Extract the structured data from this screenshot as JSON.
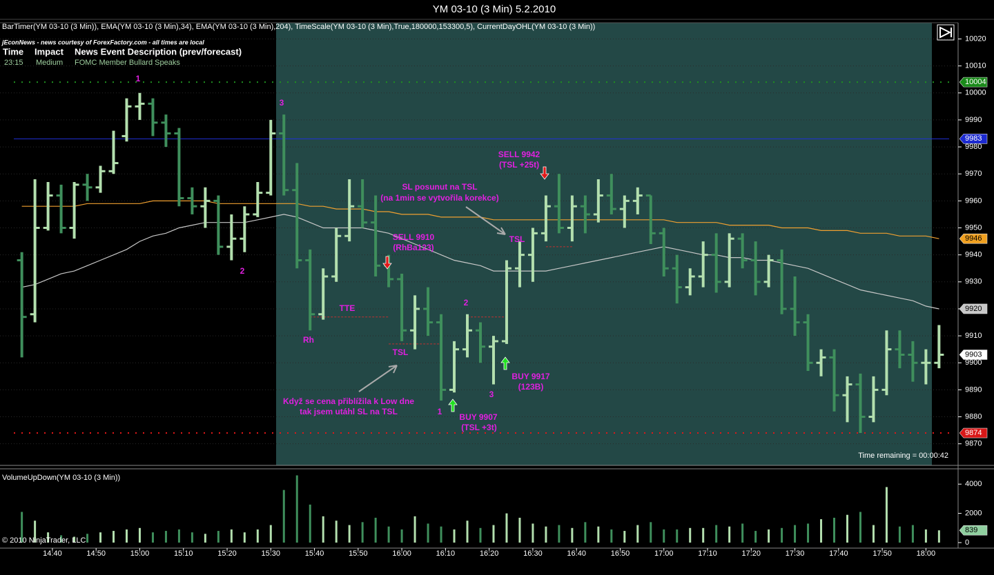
{
  "window_title": "YM 03-10 (3 Min)  5.2.2010",
  "chart_data": {
    "type": "ohlc",
    "indicator_line": "BarTimer(YM 03-10 (3 Min)), EMA(YM 03-10 (3 Min),34), EMA(YM 03-10 (3 Min),204), TimeScale(YM 03-10 (3 Min),True,180000,153300,5), CurrentDayOHL(YM 03-10 (3 Min))",
    "news": {
      "source": "jEconNews - news courtesy of ForexFactory.com - all times are local",
      "headers": [
        "Time",
        "Impact",
        "News Event Description (prev/forecast)"
      ],
      "row": [
        "23:15",
        "Medium",
        "FOMC Member Bullard Speaks"
      ]
    },
    "x": [
      "14:33",
      "14:36",
      "14:39",
      "14:42",
      "14:45",
      "14:48",
      "14:51",
      "14:54",
      "14:57",
      "15:00",
      "15:03",
      "15:06",
      "15:09",
      "15:12",
      "15:15",
      "15:18",
      "15:21",
      "15:24",
      "15:27",
      "15:30",
      "15:33",
      "15:36",
      "15:39",
      "15:42",
      "15:45",
      "15:48",
      "15:51",
      "15:54",
      "15:57",
      "16:00",
      "16:03",
      "16:06",
      "16:09",
      "16:12",
      "16:15",
      "16:18",
      "16:21",
      "16:24",
      "16:27",
      "16:30",
      "16:33",
      "16:36",
      "16:39",
      "16:42",
      "16:45",
      "16:48",
      "16:51",
      "16:54",
      "16:57",
      "17:00",
      "17:03",
      "17:06",
      "17:09",
      "17:12",
      "17:15",
      "17:18",
      "17:21",
      "17:24",
      "17:27",
      "17:30",
      "17:33",
      "17:36",
      "17:39",
      "17:42",
      "17:45",
      "17:48",
      "17:51",
      "17:54",
      "17:57",
      "18:00",
      "18:03"
    ],
    "open": [
      9938,
      9918,
      9950,
      9962,
      9950,
      9966,
      9965,
      9971,
      9984,
      9995,
      9996,
      9989,
      9985,
      9961,
      9958,
      9960,
      9943,
      9946,
      9955,
      9963,
      9985,
      9964,
      9938,
      9918,
      9932,
      9947,
      9958,
      9952,
      9936,
      9931,
      9912,
      9920,
      9915,
      9890,
      9905,
      9912,
      9906,
      9908,
      9935,
      9940,
      9948,
      9958,
      9950,
      9958,
      9955,
      9962,
      9957,
      9960,
      9962,
      9948,
      9935,
      9928,
      9932,
      9940,
      9930,
      9946,
      9938,
      9930,
      9938,
      9920,
      9915,
      9900,
      9902,
      9888,
      9892,
      9880,
      9890,
      9905,
      9903,
      9900,
      9900
    ],
    "high": [
      9941,
      9968,
      9967,
      9966,
      9967,
      9970,
      9973,
      9986,
      9998,
      10000,
      9998,
      9992,
      9987,
      9965,
      9965,
      9962,
      9955,
      9958,
      9967,
      9990,
      9992,
      9974,
      9942,
      9935,
      9950,
      9968,
      9968,
      9962,
      9940,
      9933,
      9925,
      9928,
      9918,
      9908,
      9918,
      9915,
      9910,
      9938,
      9945,
      9950,
      9962,
      9970,
      9962,
      9962,
      9968,
      9970,
      9962,
      9965,
      9962,
      9950,
      9940,
      9935,
      9945,
      9948,
      9948,
      9948,
      9945,
      9940,
      9942,
      9932,
      9918,
      9905,
      9905,
      9895,
      9896,
      9895,
      9912,
      9912,
      9908,
      9905,
      9914
    ],
    "low": [
      9902,
      9915,
      9949,
      9948,
      9946,
      9960,
      9963,
      9970,
      9982,
      9990,
      9984,
      9980,
      9958,
      9955,
      9950,
      9940,
      9938,
      9941,
      9954,
      9962,
      9962,
      9935,
      9912,
      9916,
      9930,
      9945,
      9950,
      9932,
      9928,
      9908,
      9905,
      9910,
      9886,
      9889,
      9902,
      9900,
      9892,
      9907,
      9928,
      9930,
      9945,
      9948,
      9945,
      9948,
      9952,
      9955,
      9950,
      9955,
      9944,
      9932,
      9922,
      9925,
      9928,
      9926,
      9928,
      9935,
      9925,
      9928,
      9918,
      9910,
      9897,
      9895,
      9882,
      9878,
      9874,
      9878,
      9888,
      9898,
      9893,
      9892,
      9898
    ],
    "close": [
      9917,
      9950,
      9962,
      9950,
      9966,
      9965,
      9971,
      9974,
      9995,
      9996,
      9989,
      9985,
      9961,
      9958,
      9960,
      9943,
      9946,
      9955,
      9963,
      9985,
      9964,
      9938,
      9918,
      9932,
      9947,
      9958,
      9952,
      9936,
      9931,
      9912,
      9920,
      9915,
      9890,
      9905,
      9912,
      9906,
      9908,
      9935,
      9940,
      9948,
      9958,
      9950,
      9958,
      9955,
      9962,
      9957,
      9960,
      9962,
      9948,
      9935,
      9928,
      9932,
      9940,
      9930,
      9946,
      9938,
      9930,
      9938,
      9920,
      9915,
      9900,
      9902,
      9888,
      9892,
      9880,
      9890,
      9905,
      9903,
      9900,
      9900,
      9903
    ],
    "up_color": "#b3dfae",
    "down_color": "#3f8f5c",
    "indicators": [
      {
        "color": "#c8c8c8",
        "values": [
          9928,
          9929,
          9931,
          9933,
          9934,
          9936,
          9938,
          9940,
          9942,
          9945,
          9947,
          9948,
          9950,
          9951,
          9952,
          9952,
          9952,
          9952,
          9953,
          9954,
          9955,
          9954,
          9952,
          9950,
          9950,
          9950,
          9950,
          9949,
          9948,
          9946,
          9944,
          9942,
          9940,
          9938,
          9937,
          9936,
          9934,
          9934,
          9934,
          9934,
          9934,
          9935,
          9936,
          9937,
          9938,
          9939,
          9940,
          9941,
          9942,
          9943,
          9942,
          9941,
          9940,
          9940,
          9939,
          9939,
          9938,
          9938,
          9937,
          9936,
          9935,
          9933,
          9931,
          9929,
          9927,
          9926,
          9925,
          9924,
          9923,
          9921,
          9920
        ]
      },
      {
        "color": "#f0a030",
        "values": [
          9958,
          9958,
          9958,
          9958,
          9958,
          9959,
          9959,
          9959,
          9959,
          9959,
          9960,
          9960,
          9960,
          9960,
          9960,
          9959,
          9959,
          9959,
          9959,
          9959,
          9959,
          9959,
          9958,
          9958,
          9957,
          9957,
          9957,
          9956,
          9956,
          9955,
          9955,
          9955,
          9954,
          9954,
          9954,
          9954,
          9953,
          9953,
          9953,
          9953,
          9953,
          9953,
          9953,
          9953,
          9953,
          9953,
          9953,
          9953,
          9953,
          9953,
          9952,
          9952,
          9952,
          9952,
          9951,
          9951,
          9951,
          9951,
          9950,
          9950,
          9950,
          9949,
          9949,
          9949,
          9948,
          9948,
          9948,
          9947,
          9947,
          9947,
          9946
        ]
      }
    ],
    "lines": [
      {
        "value": 10004,
        "color": "#1f8f1f",
        "style": "dotted"
      },
      {
        "value": 9983,
        "color": "#2030d8",
        "style": "solid"
      },
      {
        "value": 9874,
        "color": "#e01818",
        "style": "dotted"
      }
    ],
    "trade_lines": {
      "color": "#c03030",
      "items": [
        {
          "value": 9917,
          "from": "15:39",
          "to": "15:57"
        },
        {
          "value": 9907,
          "from": "15:57",
          "to": "16:09"
        },
        {
          "value": 9917,
          "from": "16:15",
          "to": "16:24"
        },
        {
          "value": 9943,
          "from": "16:33",
          "to": "16:39"
        }
      ]
    },
    "price_markers": [
      {
        "value": 10004,
        "color": "#1a8a1a"
      },
      {
        "value": 9983,
        "color": "#1c2ad0"
      },
      {
        "value": 9946,
        "color": "#f0a020"
      },
      {
        "value": 9920,
        "color": "#c8c8c8"
      },
      {
        "value": 9903,
        "color": "#ffffff"
      },
      {
        "value": 9874,
        "color": "#d81818"
      }
    ],
    "xlim": [
      "14:28",
      "18:08"
    ],
    "xticks": [
      "14:40",
      "14:50",
      "15:00",
      "15:10",
      "15:20",
      "15:30",
      "15:40",
      "15:50",
      "16:00",
      "16:10",
      "16:20",
      "16:30",
      "16:40",
      "16:50",
      "17:00",
      "17:10",
      "17:20",
      "17:30",
      "17:40",
      "17:50",
      "18:00"
    ],
    "ylim": [
      9862,
      10026
    ],
    "yticks": [
      9870,
      9880,
      9890,
      9900,
      9910,
      9920,
      9930,
      9940,
      9950,
      9960,
      9970,
      9980,
      9990,
      10000,
      10010,
      10020
    ],
    "grid": true,
    "time_remaining": "Time remaining = 00:00:42",
    "annotations": [
      "1",
      "3",
      "2",
      "Rh",
      "TTE",
      "TSL",
      "SELL 9910",
      "(RhBa123)",
      "SL posunut na TSL",
      "(na 1min se vytvořila korekce)",
      "SELL 9942",
      "(TSL +25t)",
      "TSL",
      "2",
      "1",
      "3",
      "BUY 9907",
      "(TSL +3t)",
      "BUY 9917",
      "(123B)",
      "Když se cena přiblížila k Low dne",
      "tak jsem utáhl SL na TSL"
    ],
    "volume": {
      "title": "VolumeUpDown(YM 03-10 (3 Min))",
      "values": [
        2100,
        1500,
        700,
        500,
        400,
        600,
        700,
        800,
        900,
        1000,
        700,
        800,
        900,
        700,
        600,
        800,
        900,
        700,
        900,
        1200,
        3600,
        4600,
        2600,
        1800,
        1500,
        1200,
        1400,
        1700,
        1100,
        900,
        1800,
        1300,
        1100,
        900,
        1500,
        1000,
        1200,
        2000,
        1700,
        1300,
        1100,
        1200,
        1000,
        1400,
        1100,
        900,
        800,
        1200,
        1400,
        900,
        900,
        1000,
        1000,
        1200,
        1100,
        1300,
        800,
        900,
        1000,
        1200,
        1300,
        1600,
        1700,
        1900,
        2100,
        1200,
        3800,
        1100,
        1200,
        900,
        839
      ],
      "ylim": [
        0,
        5000
      ],
      "yticks": [
        0,
        2000,
        4000
      ],
      "marker": 839,
      "marker_color": "#8fcf9f"
    }
  },
  "copyright": "© 2010 NinjaTrader, LLC"
}
